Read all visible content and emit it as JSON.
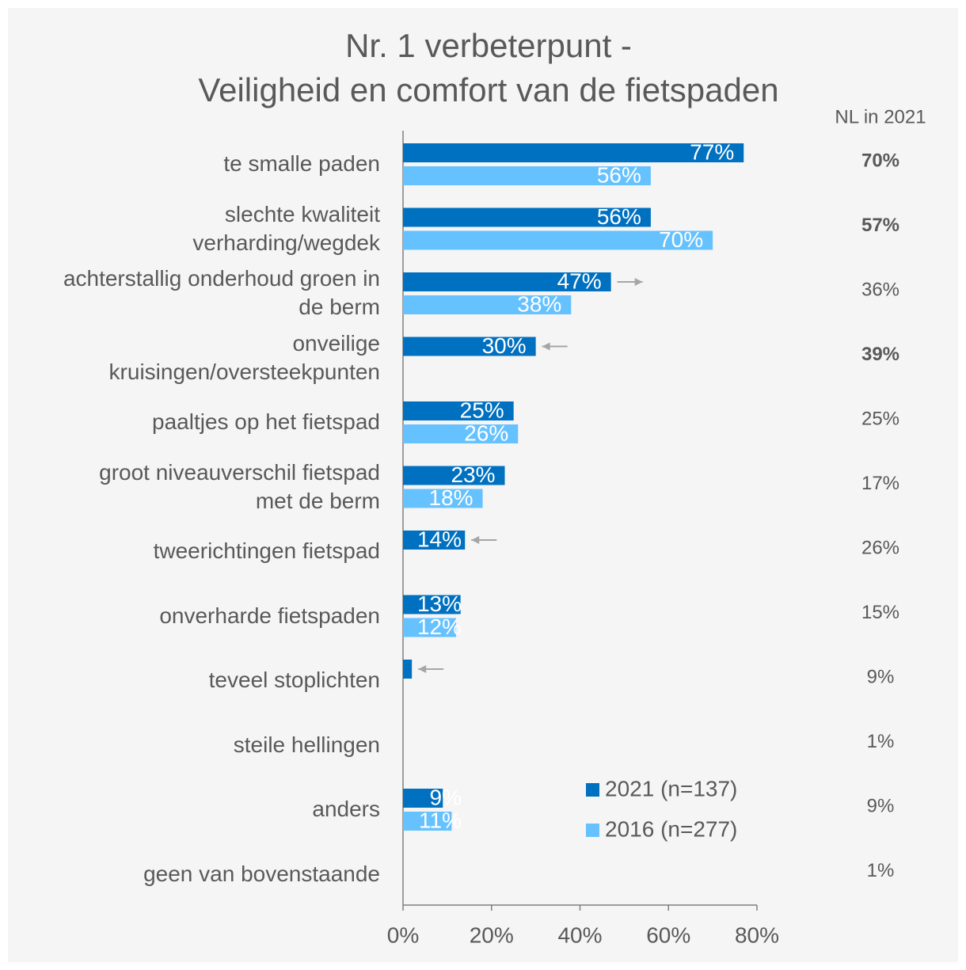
{
  "chart_data": {
    "type": "hbar",
    "title": "Nr. 1 verbeterpunt -\nVeiligheid en comfort van de fietspaden",
    "categories": [
      "te smalle paden",
      "slechte kwaliteit\nverharding/wegdek",
      "achterstallig onderhoud groen in\nde berm",
      "onveilige\nkruisingen/oversteekpunten",
      "paaltjes op het fietspad",
      "groot niveauverschil fietspad\nmet de berm",
      "tweerichtingen fietspad",
      "onverharde fietspaden",
      "teveel stoplichten",
      "steile hellingen",
      "anders",
      "geen van bovenstaande"
    ],
    "series": [
      {
        "name": "2021 (n=137)",
        "color": "#0070c0",
        "values": [
          77,
          56,
          47,
          30,
          25,
          23,
          14,
          13,
          2,
          null,
          9,
          null
        ],
        "value_labels": [
          "77%",
          "56%",
          "47%",
          "30%",
          "25%",
          "23%",
          "14%",
          "13%",
          null,
          null,
          "9%",
          null
        ],
        "arrows": [
          null,
          null,
          "right",
          "left",
          null,
          null,
          "left",
          null,
          "left",
          null,
          null,
          null
        ]
      },
      {
        "name": "2016 (n=277)",
        "color": "#66c2ff",
        "values": [
          56,
          70,
          38,
          null,
          26,
          18,
          null,
          12,
          null,
          null,
          11,
          null
        ],
        "value_labels": [
          "56%",
          "70%",
          "38%",
          null,
          "26%",
          "18%",
          null,
          "12%",
          null,
          null,
          "11%",
          null
        ]
      }
    ],
    "xlim": [
      0,
      80
    ],
    "xticks": [
      {
        "value": 0,
        "label": "0%"
      },
      {
        "value": 20,
        "label": "20%"
      },
      {
        "value": 40,
        "label": "40%"
      },
      {
        "value": 60,
        "label": "60%"
      },
      {
        "value": 80,
        "label": "80%"
      }
    ],
    "legend": "lower right",
    "nl": {
      "title": "NL in 2021",
      "values": [
        70,
        57,
        36,
        39,
        25,
        17,
        26,
        15,
        9,
        1,
        9,
        1
      ],
      "value_labels": [
        "70%",
        "57%",
        "36%",
        "39%",
        "25%",
        "17%",
        "26%",
        "15%",
        "9%",
        "1%",
        "9%",
        "1%"
      ],
      "bold": [
        true,
        true,
        false,
        true,
        false,
        false,
        false,
        false,
        false,
        false,
        false,
        false
      ]
    }
  }
}
